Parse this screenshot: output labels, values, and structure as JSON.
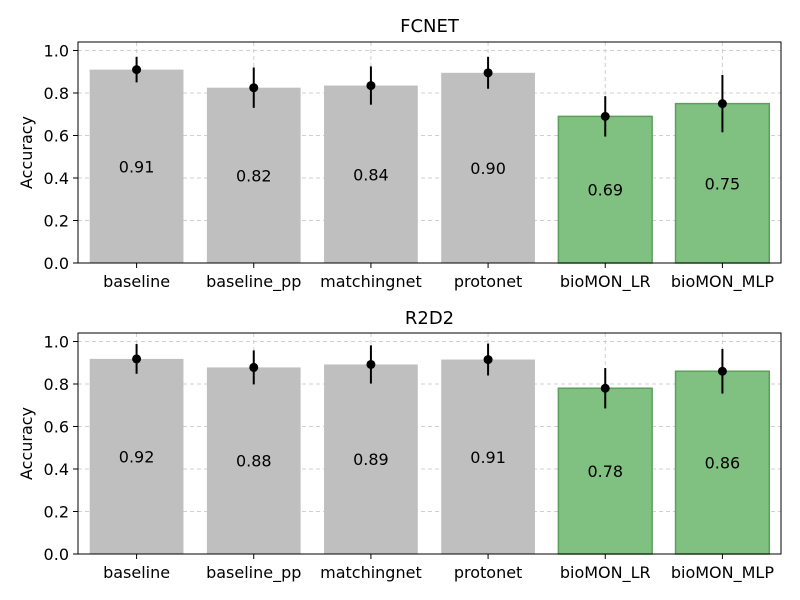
{
  "chart_data": [
    {
      "type": "bar",
      "title": "FCNET",
      "ylabel": "Accuracy",
      "xlabel": "",
      "ylim": [
        0,
        1.04
      ],
      "yticks": [
        "0.0",
        "0.2",
        "0.4",
        "0.6",
        "0.8",
        "1.0"
      ],
      "grid": true,
      "categories": [
        "baseline",
        "baseline_pp",
        "matchingnet",
        "protonet",
        "bioMON_LR",
        "bioMON_MLP"
      ],
      "values": [
        0.91,
        0.825,
        0.835,
        0.895,
        0.69,
        0.75
      ],
      "value_labels": [
        "0.91",
        "0.82",
        "0.84",
        "0.90",
        "0.69",
        "0.75"
      ],
      "error": [
        0.06,
        0.095,
        0.09,
        0.075,
        0.095,
        0.135
      ],
      "bar_colors": [
        "#bfbfbf",
        "#bfbfbf",
        "#bfbfbf",
        "#bfbfbf",
        "#80c080",
        "#80c080"
      ]
    },
    {
      "type": "bar",
      "title": "R2D2",
      "ylabel": "Accuracy",
      "xlabel": "",
      "ylim": [
        0,
        1.04
      ],
      "yticks": [
        "0.0",
        "0.2",
        "0.4",
        "0.6",
        "0.8",
        "1.0"
      ],
      "grid": true,
      "categories": [
        "baseline",
        "baseline_pp",
        "matchingnet",
        "protonet",
        "bioMON_LR",
        "bioMON_MLP"
      ],
      "values": [
        0.918,
        0.878,
        0.892,
        0.915,
        0.78,
        0.86
      ],
      "value_labels": [
        "0.92",
        "0.88",
        "0.89",
        "0.91",
        "0.78",
        "0.86"
      ],
      "error": [
        0.07,
        0.08,
        0.09,
        0.075,
        0.095,
        0.105
      ],
      "bar_colors": [
        "#bfbfbf",
        "#bfbfbf",
        "#bfbfbf",
        "#bfbfbf",
        "#80c080",
        "#80c080"
      ]
    }
  ]
}
